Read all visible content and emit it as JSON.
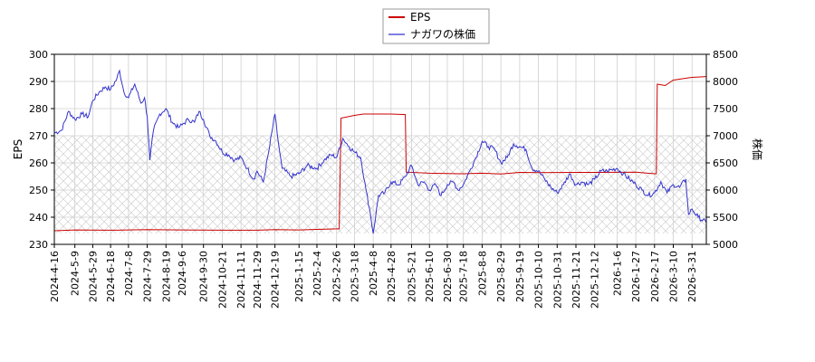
{
  "chart_data": {
    "type": "line",
    "title": "",
    "grid": true,
    "legend_position": "top-center",
    "xlabel": "",
    "ylabel_left": "EPS",
    "ylabel_right": "株価",
    "ylim_left": [
      230,
      300
    ],
    "ylim_right": [
      5000,
      8500
    ],
    "yticks_left": [
      "230",
      "240",
      "250",
      "260",
      "270",
      "280",
      "290",
      "300"
    ],
    "yticks_right": [
      "5000",
      "5500",
      "6000",
      "6500",
      "7000",
      "7500",
      "8000",
      "8500"
    ],
    "x_range": [
      "2024-04-16",
      "2026-04-16"
    ],
    "xticks": [
      "2024-4-16",
      "2024-5-9",
      "2024-5-29",
      "2024-6-18",
      "2024-7-8",
      "2024-7-29",
      "2024-8-19",
      "2024-9-6",
      "2024-9-30",
      "2024-10-21",
      "2024-11-11",
      "2024-11-29",
      "2024-12-19",
      "2025-1-15",
      "2025-2-4",
      "2025-2-26",
      "2025-3-18",
      "2025-4-8",
      "2025-4-28",
      "2025-5-21",
      "2025-6-10",
      "2025-6-30",
      "2025-7-18",
      "2025-8-8",
      "2025-8-29",
      "2025-9-19",
      "2025-10-10",
      "2025-10-31",
      "2025-11-21",
      "2025-12-12",
      "2026-1-6",
      "2026-1-27",
      "2026-2-17",
      "2026-3-10",
      "2026-3-31"
    ],
    "hatch_band_left": [
      234,
      270
    ],
    "series": [
      {
        "name": "EPS",
        "axis": "left",
        "color": "#cc0000",
        "points": [
          [
            "2024-04-16",
            235.0
          ],
          [
            "2024-05-09",
            235.3
          ],
          [
            "2024-06-18",
            235.2
          ],
          [
            "2024-07-29",
            235.4
          ],
          [
            "2024-09-06",
            235.3
          ],
          [
            "2024-10-21",
            235.2
          ],
          [
            "2024-11-29",
            235.2
          ],
          [
            "2024-12-19",
            235.4
          ],
          [
            "2025-01-15",
            235.3
          ],
          [
            "2025-02-04",
            235.5
          ],
          [
            "2025-02-26",
            235.7
          ],
          [
            "2025-03-01",
            235.7
          ],
          [
            "2025-03-03",
            276.5
          ],
          [
            "2025-03-18",
            277.5
          ],
          [
            "2025-03-28",
            278.0
          ],
          [
            "2025-04-08",
            278.0
          ],
          [
            "2025-04-28",
            278.0
          ],
          [
            "2025-05-14",
            277.8
          ],
          [
            "2025-05-15",
            256.6
          ],
          [
            "2025-06-10",
            256.2
          ],
          [
            "2025-07-18",
            256.0
          ],
          [
            "2025-08-08",
            256.2
          ],
          [
            "2025-08-29",
            255.9
          ],
          [
            "2025-09-19",
            256.5
          ],
          [
            "2025-10-10",
            256.4
          ],
          [
            "2025-11-21",
            256.5
          ],
          [
            "2025-12-12",
            256.5
          ],
          [
            "2026-01-27",
            256.6
          ],
          [
            "2026-02-17",
            256.0
          ],
          [
            "2026-02-19",
            256.0
          ],
          [
            "2026-02-20",
            289.0
          ],
          [
            "2026-03-01",
            288.5
          ],
          [
            "2026-03-10",
            290.5
          ],
          [
            "2026-03-31",
            291.5
          ],
          [
            "2026-04-16",
            291.8
          ]
        ]
      },
      {
        "name": "ナガワの株価",
        "axis": "right",
        "color": "#3333cc",
        "points": [
          [
            "2024-04-16",
            7050
          ],
          [
            "2024-04-24",
            7100
          ],
          [
            "2024-05-02",
            7450
          ],
          [
            "2024-05-09",
            7300
          ],
          [
            "2024-05-17",
            7400
          ],
          [
            "2024-05-24",
            7350
          ],
          [
            "2024-05-29",
            7650
          ],
          [
            "2024-06-05",
            7800
          ],
          [
            "2024-06-12",
            7900
          ],
          [
            "2024-06-18",
            7850
          ],
          [
            "2024-06-25",
            8050
          ],
          [
            "2024-06-28",
            8200
          ],
          [
            "2024-07-03",
            7800
          ],
          [
            "2024-07-08",
            7700
          ],
          [
            "2024-07-15",
            7950
          ],
          [
            "2024-07-22",
            7600
          ],
          [
            "2024-07-26",
            7700
          ],
          [
            "2024-07-29",
            7350
          ],
          [
            "2024-08-01",
            6550
          ],
          [
            "2024-08-05",
            7100
          ],
          [
            "2024-08-12",
            7400
          ],
          [
            "2024-08-19",
            7500
          ],
          [
            "2024-08-26",
            7250
          ],
          [
            "2024-09-02",
            7150
          ],
          [
            "2024-09-06",
            7200
          ],
          [
            "2024-09-13",
            7300
          ],
          [
            "2024-09-20",
            7250
          ],
          [
            "2024-09-25",
            7450
          ],
          [
            "2024-09-30",
            7300
          ],
          [
            "2024-10-07",
            7000
          ],
          [
            "2024-10-14",
            6900
          ],
          [
            "2024-10-21",
            6700
          ],
          [
            "2024-10-28",
            6650
          ],
          [
            "2024-11-04",
            6550
          ],
          [
            "2024-11-11",
            6600
          ],
          [
            "2024-11-18",
            6400
          ],
          [
            "2024-11-25",
            6200
          ],
          [
            "2024-11-29",
            6350
          ],
          [
            "2024-12-06",
            6150
          ],
          [
            "2024-12-12",
            6700
          ],
          [
            "2024-12-19",
            7400
          ],
          [
            "2024-12-23",
            6850
          ],
          [
            "2024-12-27",
            6400
          ],
          [
            "2025-01-06",
            6250
          ],
          [
            "2025-01-15",
            6300
          ],
          [
            "2025-01-24",
            6450
          ],
          [
            "2025-02-04",
            6400
          ],
          [
            "2025-02-12",
            6550
          ],
          [
            "2025-02-20",
            6650
          ],
          [
            "2025-02-26",
            6600
          ],
          [
            "2025-03-05",
            6950
          ],
          [
            "2025-03-12",
            6800
          ],
          [
            "2025-03-18",
            6700
          ],
          [
            "2025-03-25",
            6600
          ],
          [
            "2025-03-31",
            6000
          ],
          [
            "2025-04-04",
            5650
          ],
          [
            "2025-04-08",
            5200
          ],
          [
            "2025-04-14",
            5900
          ],
          [
            "2025-04-21",
            5950
          ],
          [
            "2025-04-28",
            6150
          ],
          [
            "2025-05-07",
            6100
          ],
          [
            "2025-05-14",
            6250
          ],
          [
            "2025-05-21",
            6450
          ],
          [
            "2025-05-28",
            6100
          ],
          [
            "2025-06-04",
            6150
          ],
          [
            "2025-06-10",
            6000
          ],
          [
            "2025-06-17",
            6100
          ],
          [
            "2025-06-23",
            5900
          ],
          [
            "2025-06-30",
            6100
          ],
          [
            "2025-07-07",
            6150
          ],
          [
            "2025-07-12",
            6000
          ],
          [
            "2025-07-18",
            6100
          ],
          [
            "2025-07-25",
            6350
          ],
          [
            "2025-08-01",
            6600
          ],
          [
            "2025-08-08",
            6900
          ],
          [
            "2025-08-15",
            6800
          ],
          [
            "2025-08-22",
            6750
          ],
          [
            "2025-08-29",
            6500
          ],
          [
            "2025-09-05",
            6600
          ],
          [
            "2025-09-12",
            6850
          ],
          [
            "2025-09-19",
            6800
          ],
          [
            "2025-09-26",
            6750
          ],
          [
            "2025-10-03",
            6400
          ],
          [
            "2025-10-10",
            6350
          ],
          [
            "2025-10-17",
            6200
          ],
          [
            "2025-10-24",
            6050
          ],
          [
            "2025-10-31",
            5950
          ],
          [
            "2025-11-07",
            6100
          ],
          [
            "2025-11-14",
            6300
          ],
          [
            "2025-11-21",
            6100
          ],
          [
            "2025-11-28",
            6150
          ],
          [
            "2025-12-05",
            6100
          ],
          [
            "2025-12-12",
            6200
          ],
          [
            "2025-12-19",
            6350
          ],
          [
            "2025-12-26",
            6350
          ],
          [
            "2026-01-06",
            6400
          ],
          [
            "2026-01-13",
            6300
          ],
          [
            "2026-01-20",
            6200
          ],
          [
            "2026-01-27",
            6100
          ],
          [
            "2026-02-03",
            6000
          ],
          [
            "2026-02-10",
            5900
          ],
          [
            "2026-02-17",
            5950
          ],
          [
            "2026-02-24",
            6150
          ],
          [
            "2026-03-03",
            5950
          ],
          [
            "2026-03-10",
            6100
          ],
          [
            "2026-03-17",
            6050
          ],
          [
            "2026-03-24",
            6200
          ],
          [
            "2026-03-27",
            5550
          ],
          [
            "2026-03-31",
            5650
          ],
          [
            "2026-04-07",
            5500
          ],
          [
            "2026-04-16",
            5400
          ]
        ]
      }
    ]
  }
}
